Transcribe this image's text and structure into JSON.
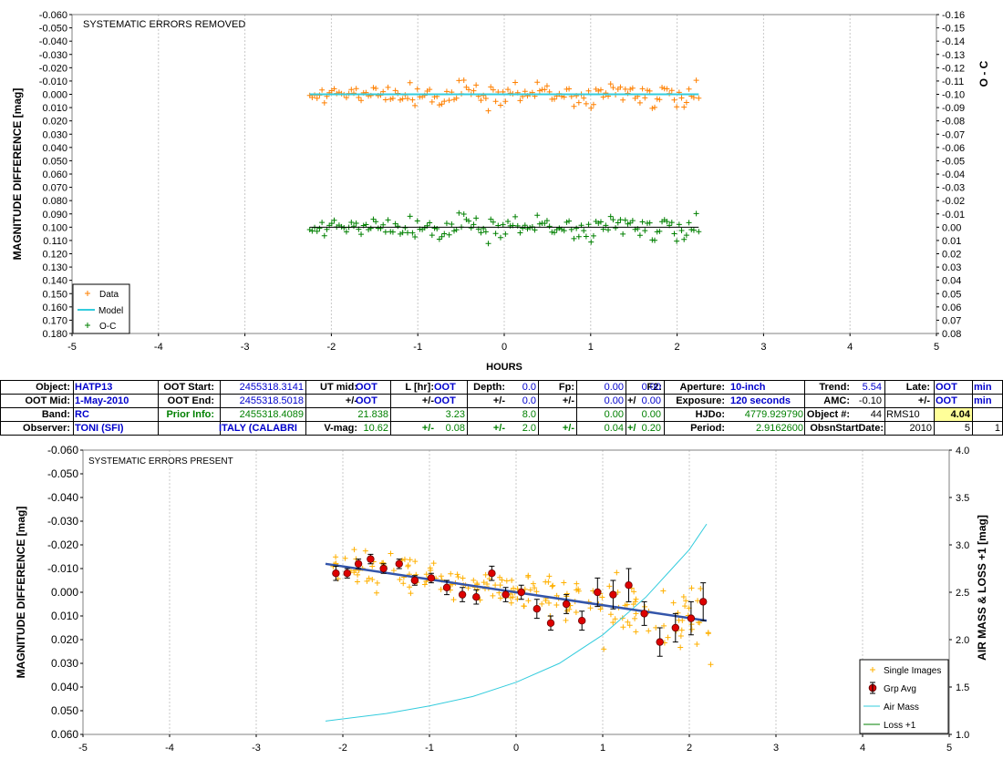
{
  "top_chart": {
    "annotation": "SYSTEMATIC ERRORS REMOVED",
    "ylabel_left": "MAGNITUDE DIFFERENCE [mag]",
    "ylabel_right": "O - C",
    "xlabel": "HOURS",
    "x_ticks": [
      "-5",
      "-4",
      "-3",
      "-2",
      "-1",
      "0",
      "1",
      "2",
      "3",
      "4",
      "5"
    ],
    "y_ticks_left": [
      "-0.060",
      "-0.050",
      "-0.040",
      "-0.030",
      "-0.020",
      "-0.010",
      "0.000",
      "0.010",
      "0.020",
      "0.030",
      "0.040",
      "0.050",
      "0.060",
      "0.070",
      "0.080",
      "0.090",
      "0.100",
      "0.110",
      "0.120",
      "0.130",
      "0.140",
      "0.150",
      "0.160",
      "0.170",
      "0.180"
    ],
    "y_ticks_right": [
      "-0.16",
      "-0.15",
      "-0.14",
      "-0.13",
      "-0.12",
      "-0.11",
      "-0.10",
      "-0.09",
      "-0.08",
      "-0.07",
      "-0.06",
      "-0.05",
      "-0.04",
      "-0.03",
      "-0.02",
      "-0.01",
      "0.00",
      "0.01",
      "0.02",
      "0.03",
      "0.04",
      "0.05",
      "0.06",
      "0.07",
      "0.08"
    ],
    "legend": [
      "Data",
      "Model",
      "O-C"
    ]
  },
  "bottom_chart": {
    "annotation": "SYSTEMATIC ERRORS PRESENT",
    "ylabel_left": "MAGNITUDE DIFFERENCE [mag]",
    "ylabel_right": "AIR MASS & LOSS +1 [mag]",
    "x_ticks": [
      "-5",
      "-4",
      "-3",
      "-2",
      "-1",
      "0",
      "1",
      "2",
      "3",
      "4",
      "5"
    ],
    "y_ticks_left": [
      "-0.060",
      "-0.050",
      "-0.040",
      "-0.030",
      "-0.020",
      "-0.010",
      "0.000",
      "0.010",
      "0.020",
      "0.030",
      "0.040",
      "0.050",
      "0.060"
    ],
    "y_ticks_right": [
      "4.0",
      "3.5",
      "3.0",
      "2.5",
      "2.0",
      "1.5",
      "1.0"
    ],
    "legend": [
      "Single Images",
      "Grp Avg",
      "Air Mass",
      "Loss +1"
    ]
  },
  "info": {
    "object_label": "Object:",
    "object_value": "HATP13",
    "ootmid_label": "OOT Mid:",
    "ootmid_value": "1-May-2010",
    "band_label": "Band:",
    "band_value": "RC",
    "observer_label": "Observer:",
    "observer_value": "TONI (SFI)",
    "ootstart_label": "OOT Start:",
    "ootstart_value": "2455318.3141",
    "ootend_label": "OOT End:",
    "ootend_value": "2455318.5018",
    "prior_label": "Prior Info:",
    "prior_value": "2455318.4089",
    "location_value": "ITALY (CALABRI",
    "utmid_label": "UT mid:",
    "utmid_value": "OOT",
    "pm1": "+/-",
    "pm1_value": "OOT",
    "c3_r3": "21.838",
    "vmag_label": "V-mag:",
    "vmag_value": "10.62",
    "l_label": "L [hr]:",
    "l_value": "OOT",
    "l_pm": "+/-",
    "l_pm_value": "OOT",
    "l_r3": "3.23",
    "l_r4_pm": "+/-",
    "l_r4": "0.08",
    "depth_label": "Depth:",
    "depth_value": "0.0",
    "depth_pm": "+/-",
    "depth_pm_value": "0.0",
    "depth_r3": "8.0",
    "depth_r4_pm": "+/-",
    "depth_r4": "2.0",
    "fp_label": "Fp:",
    "fp_value": "0.00",
    "fp_pm": "+/-",
    "fp_pm_value": "0.00",
    "fp_r3": "0.00",
    "fp_r4_pm": "+/-",
    "fp_r4": "0.04",
    "f2_label": "F2:",
    "f2_value": "0.00",
    "f2_pm": "+/-",
    "f2_pm_value": "0.00",
    "f2_r3": "0.00",
    "f2_r4_pm": "+/-",
    "f2_r4": "0.20",
    "aperture_label": "Aperture:",
    "aperture_value": "10-inch",
    "exposure_label": "Exposure:",
    "exposure_value": "120 seconds",
    "hjdo_label": "HJDo:",
    "hjdo_value": "4779.929790",
    "period_label": "Period:",
    "period_value": "2.9162600",
    "trend_label": "Trend:",
    "trend_value": "5.54",
    "amc_label": "AMC:",
    "amc_value": "-0.10",
    "objnum_label": "Object #:",
    "objnum_value": "44",
    "obsstart_label": "ObsnStartDate:",
    "obsstart_y": "2010",
    "obsstart_m": "5",
    "obsstart_d": "1",
    "late_label": "Late:",
    "late_value": "OOT",
    "late_unit": "min",
    "late_pm": "+/-",
    "late_pm_value": "OOT",
    "late_pm_unit": "min",
    "rms_label": "RMS10",
    "rms_value": "4.04"
  },
  "chart_data": [
    {
      "type": "scatter",
      "title": "SYSTEMATIC ERRORS REMOVED",
      "xlabel": "HOURS",
      "ylabel": "MAGNITUDE DIFFERENCE [mag]",
      "y2label": "O - C",
      "xlim": [
        -5,
        5
      ],
      "ylim": [
        0.18,
        -0.06
      ],
      "y2lim": [
        0.08,
        -0.16
      ],
      "legend_position": "bottom-left",
      "series": [
        {
          "name": "Data",
          "color": "#ff8000",
          "marker": "+",
          "x_range": [
            -2.25,
            2.25
          ],
          "y_mean": 0.0,
          "y_scatter": 0.01
        },
        {
          "name": "Model",
          "color": "#33ccdd",
          "line": true,
          "x": [
            -2.25,
            2.25
          ],
          "y": [
            0.0,
            0.0
          ]
        },
        {
          "name": "O-C",
          "color": "#008000",
          "marker": "+",
          "axis": "right",
          "x_range": [
            -2.25,
            2.25
          ],
          "y_mean": 0.0,
          "y_scatter": 0.01
        }
      ]
    },
    {
      "type": "scatter",
      "title": "SYSTEMATIC ERRORS PRESENT",
      "ylabel": "MAGNITUDE DIFFERENCE [mag]",
      "y2label": "AIR MASS & LOSS +1 [mag]",
      "xlim": [
        -5,
        5
      ],
      "ylim": [
        0.06,
        -0.06
      ],
      "y2lim": [
        1.0,
        4.0
      ],
      "legend_position": "bottom-right",
      "series": [
        {
          "name": "Single Images",
          "color": "#ffb000",
          "marker": "+",
          "x_range": [
            -2.2,
            2.25
          ]
        },
        {
          "name": "Grp Avg",
          "color": "#dd0000",
          "marker": "circle",
          "x": [
            -2.08,
            -1.95,
            -1.82,
            -1.68,
            -1.53,
            -1.35,
            -1.17,
            -0.98,
            -0.8,
            -0.62,
            -0.46,
            -0.28,
            -0.12,
            0.06,
            0.24,
            0.4,
            0.58,
            0.76,
            0.94,
            1.12,
            1.3,
            1.48,
            1.66,
            1.84,
            2.02,
            2.16
          ],
          "y": [
            -0.008,
            -0.008,
            -0.012,
            -0.014,
            -0.01,
            -0.012,
            -0.005,
            -0.006,
            -0.002,
            0.001,
            0.002,
            -0.008,
            0.001,
            0.0,
            0.007,
            0.013,
            0.005,
            0.012,
            0.0,
            0.001,
            -0.003,
            0.009,
            0.021,
            0.015,
            0.011,
            0.004
          ],
          "err": [
            0.003,
            0.002,
            0.002,
            0.002,
            0.002,
            0.002,
            0.002,
            0.002,
            0.003,
            0.003,
            0.003,
            0.003,
            0.003,
            0.003,
            0.004,
            0.003,
            0.004,
            0.004,
            0.006,
            0.006,
            0.007,
            0.005,
            0.006,
            0.006,
            0.007,
            0.008
          ]
        },
        {
          "name": "Trend",
          "color": "#3355aa",
          "line": true,
          "x": [
            -2.2,
            2.2
          ],
          "y": [
            -0.012,
            0.012
          ]
        },
        {
          "name": "Air Mass",
          "color": "#33ccdd",
          "line": true,
          "axis": "right",
          "x": [
            -2.2,
            -1.5,
            -1.0,
            -0.5,
            0.0,
            0.5,
            1.0,
            1.5,
            1.8,
            2.0,
            2.2
          ],
          "y": [
            1.14,
            1.22,
            1.3,
            1.4,
            1.55,
            1.75,
            2.05,
            2.45,
            2.75,
            2.95,
            3.22
          ]
        },
        {
          "name": "Loss +1",
          "color": "#008000",
          "line": true,
          "axis": "right",
          "x": [],
          "y": []
        }
      ]
    }
  ]
}
